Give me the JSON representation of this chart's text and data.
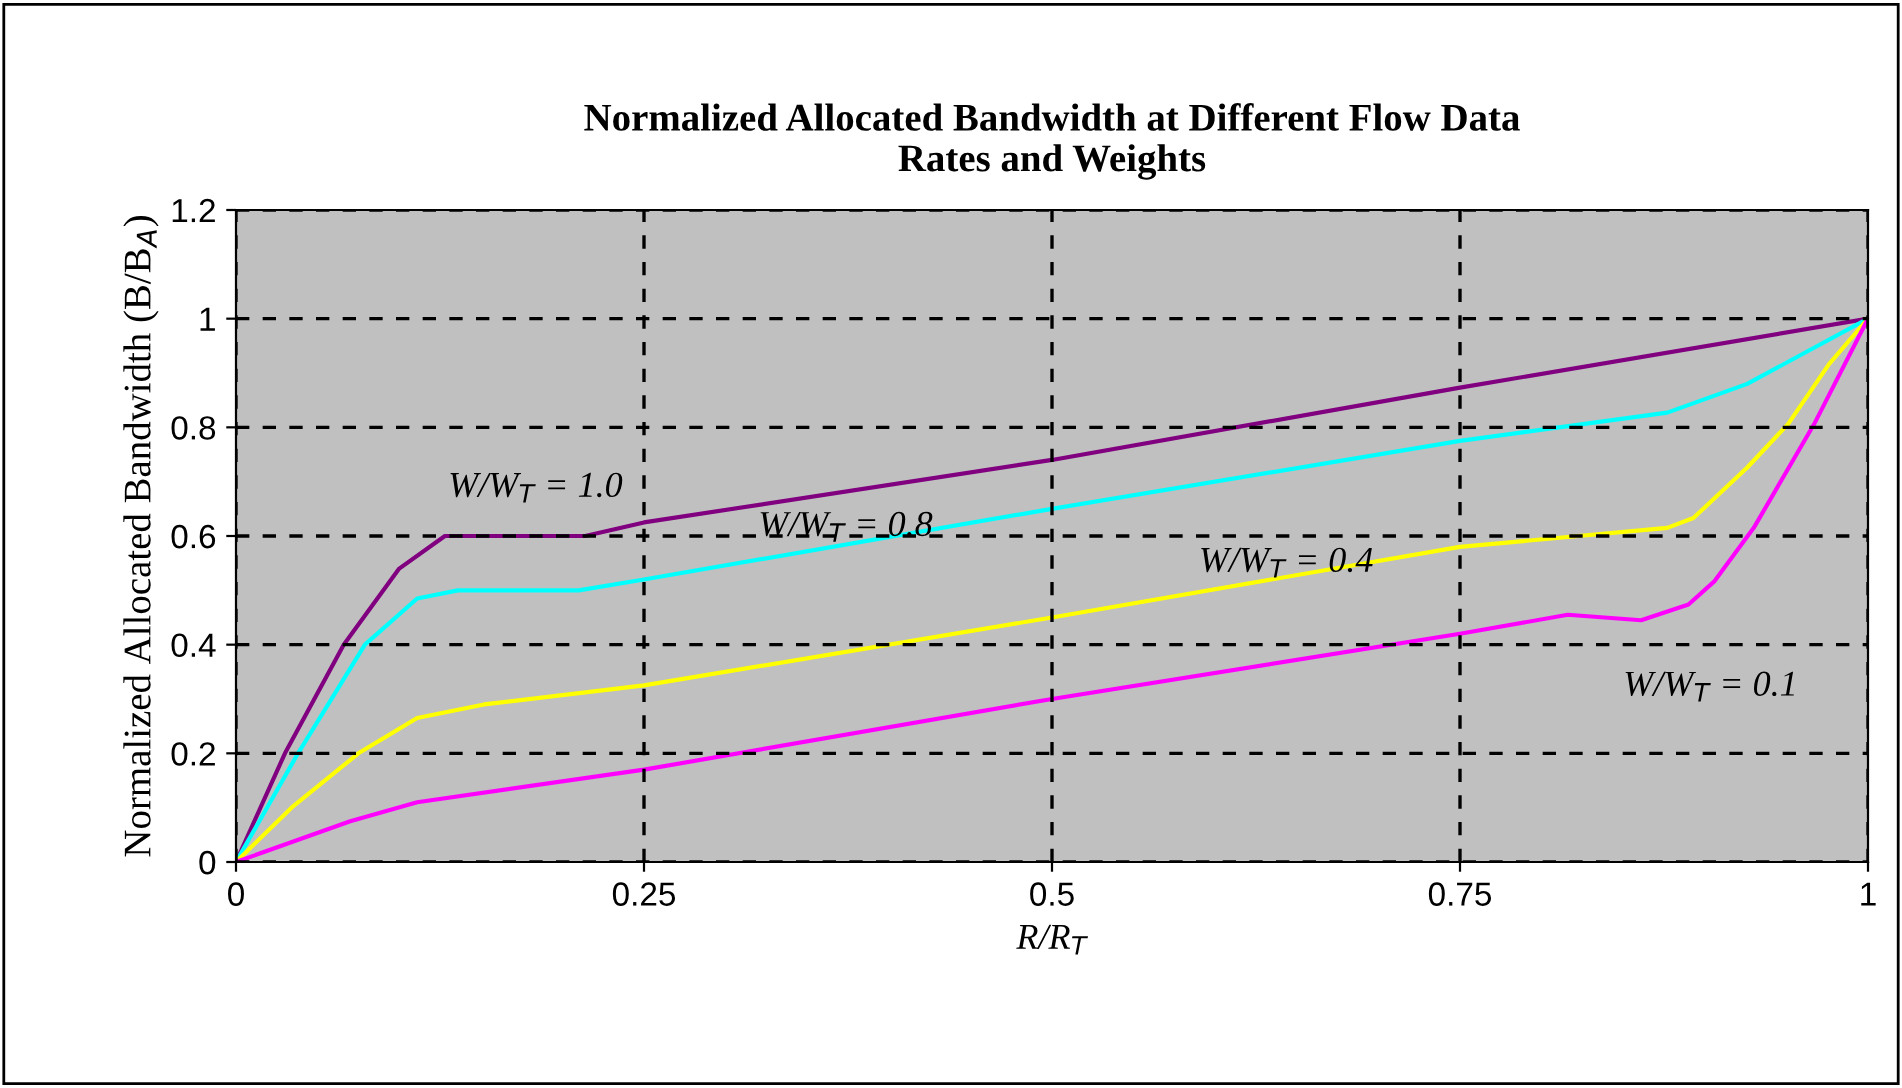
{
  "chart_data": {
    "type": "line",
    "title": "Normalized Allocated Bandwidth at Different Flow Data\nRates and Weights",
    "xlabel": "R/R$_{T}$",
    "ylabel": "Normalized Allocated Bandwidth (B/B$_{A}$)",
    "xlim": [
      0,
      1
    ],
    "ylim": [
      0,
      1.2
    ],
    "xticks": [
      0,
      0.25,
      0.5,
      0.75,
      1
    ],
    "yticks": [
      0,
      0.2,
      0.4,
      0.6,
      0.8,
      1,
      1.2
    ],
    "grid": true,
    "line_style": "solid",
    "marker": "none",
    "series": [
      {
        "color": "#800080",
        "x": [
          0,
          0.03,
          0.066,
          0.1,
          0.128,
          0.214,
          0.25,
          0.5,
          0.75,
          1
        ],
        "values": [
          0,
          0.2,
          0.4,
          0.54,
          0.6,
          0.6,
          0.625,
          0.74,
          0.873,
          1
        ]
      },
      {
        "color": "#00ffff",
        "x": [
          0,
          0.038,
          0.079,
          0.111,
          0.136,
          0.21,
          0.25,
          0.5,
          0.75,
          0.877,
          0.926,
          1
        ],
        "values": [
          0,
          0.2,
          0.4,
          0.485,
          0.5,
          0.5,
          0.52,
          0.65,
          0.775,
          0.827,
          0.88,
          1
        ]
      },
      {
        "color": "#ffff00",
        "x": [
          0,
          0.034,
          0.075,
          0.111,
          0.152,
          0.25,
          0.5,
          0.75,
          0.877,
          0.893,
          0.926,
          0.951,
          0.976,
          1
        ],
        "values": [
          0,
          0.1,
          0.2,
          0.265,
          0.29,
          0.325,
          0.45,
          0.58,
          0.615,
          0.633,
          0.726,
          0.806,
          0.916,
          1
        ]
      },
      {
        "color": "#ff00ff",
        "x": [
          0,
          0.07,
          0.111,
          0.25,
          0.5,
          0.75,
          0.816,
          0.861,
          0.89,
          0.906,
          0.93,
          0.967,
          1
        ],
        "values": [
          0,
          0.075,
          0.11,
          0.17,
          0.3,
          0.42,
          0.455,
          0.445,
          0.474,
          0.517,
          0.615,
          0.806,
          1
        ]
      }
    ],
    "annotations": [
      "W/W$_{T}$ = 1.0",
      "W/W$_{T}$ = 0.8",
      "W/W$_{T}$ = 0.4",
      "W/W$_{T}$ = 0.1"
    ]
  }
}
